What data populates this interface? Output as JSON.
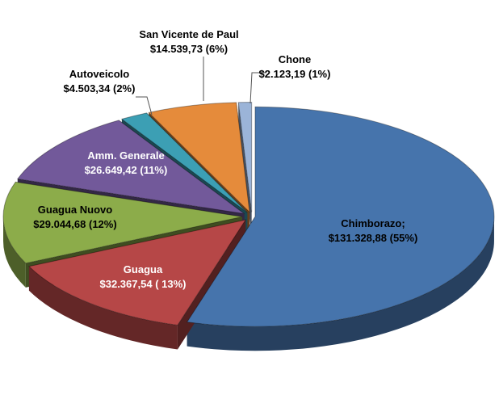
{
  "chart_data": {
    "type": "pie",
    "style": "3d-exploded",
    "title": "",
    "legend": "none",
    "slices": [
      {
        "name": "Chimborazo",
        "label_name": "Chimborazo;",
        "value": 131328.88,
        "value_label": "$131.328,88",
        "percent_label": "(55%)",
        "color": "#4674ac",
        "label_color": "#000000"
      },
      {
        "name": "Guagua",
        "label_name": "Guagua",
        "value": 32367.54,
        "value_label": "$32.367,54",
        "percent_label": "( 13%)",
        "color": "#b64747",
        "label_color": "#ffffff"
      },
      {
        "name": "Guagua Nuovo",
        "label_name": "Guagua Nuovo",
        "value": 29044.68,
        "value_label": "$29.044,68",
        "percent_label": "(12%)",
        "color": "#8cac4a",
        "label_color": "#000000"
      },
      {
        "name": "Amm. Generale",
        "label_name": "Amm. Generale",
        "value": 26649.42,
        "value_label": "$26.649,42",
        "percent_label": "(11%)",
        "color": "#72599a",
        "label_color": "#ffffff"
      },
      {
        "name": "Autoveicolo",
        "label_name": "Autoveicolo",
        "value": 4503.34,
        "value_label": "$4.503,34",
        "percent_label": "(2%)",
        "color": "#3c9fb4",
        "label_color": "#000000"
      },
      {
        "name": "San Vicente de Paul",
        "label_name": "San Vicente de Paul",
        "value": 14539.73,
        "value_label": "$14.539,73",
        "percent_label": "(6%)",
        "color": "#e58b3b",
        "label_color": "#000000"
      },
      {
        "name": "Chone",
        "label_name": "Chone",
        "value": 2123.19,
        "value_label": "$2.123,19",
        "percent_label": "(1%)",
        "color": "#9bb4d8",
        "label_color": "#000000"
      }
    ]
  }
}
